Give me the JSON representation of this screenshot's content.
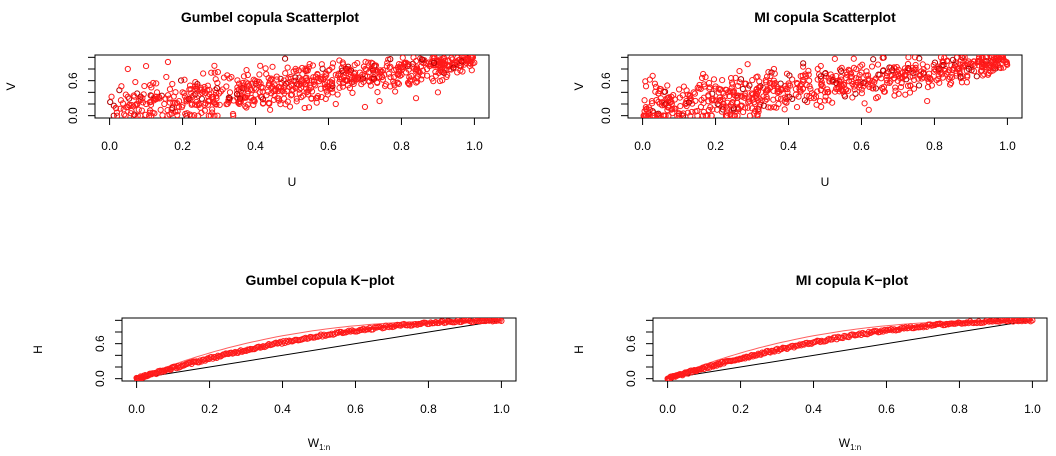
{
  "colors": {
    "points": "#ff1a1a",
    "points_dark": "#b00000",
    "ref_line": "#000000",
    "upper_curve": "#ff6060"
  },
  "chart_data": [
    {
      "type": "scatter",
      "title": "Gumbel copula Scatterplot",
      "xlabel": "U",
      "ylabel": "V",
      "xlim": [
        0,
        1
      ],
      "ylim": [
        0,
        1
      ],
      "xticks": [
        "0.0",
        "0.2",
        "0.4",
        "0.6",
        "0.8",
        "1.0"
      ],
      "yticks": [
        "0.0",
        "0.6"
      ],
      "series": [
        {
          "values_description_free": true,
          "x": [
            0.02,
            0.05,
            0.08,
            0.1,
            0.12,
            0.14,
            0.16,
            0.18,
            0.2,
            0.22,
            0.24,
            0.26,
            0.28,
            0.3,
            0.32,
            0.34,
            0.36,
            0.38,
            0.4,
            0.42,
            0.44,
            0.46,
            0.48,
            0.5,
            0.52,
            0.54,
            0.56,
            0.58,
            0.6,
            0.62,
            0.64,
            0.66,
            0.68,
            0.7,
            0.72,
            0.74,
            0.76,
            0.78,
            0.8,
            0.82,
            0.84,
            0.86,
            0.88,
            0.9,
            0.92,
            0.94,
            0.96,
            0.98,
            0.03,
            0.06,
            0.09,
            0.11,
            0.15,
            0.19,
            0.23,
            0.27,
            0.31,
            0.35,
            0.39,
            0.43,
            0.47,
            0.51,
            0.55,
            0.59,
            0.63,
            0.67,
            0.71,
            0.75,
            0.79,
            0.83,
            0.87,
            0.91,
            0.95,
            0.99,
            0.04,
            0.07,
            0.13,
            0.17,
            0.21,
            0.25,
            0.29,
            0.33,
            0.37,
            0.41,
            0.45,
            0.49,
            0.53,
            0.57,
            0.61,
            0.65,
            0.69,
            0.73,
            0.77,
            0.81,
            0.85,
            0.89,
            0.93,
            0.97,
            0.05,
            0.1,
            0.16,
            0.44,
            0.62,
            0.7,
            0.74,
            0.84,
            0.9
          ],
          "y": [
            0.05,
            0.15,
            0.25,
            0.2,
            0.3,
            0.1,
            0.35,
            0.22,
            0.4,
            0.28,
            0.18,
            0.45,
            0.32,
            0.38,
            0.5,
            0.26,
            0.42,
            0.55,
            0.36,
            0.48,
            0.6,
            0.3,
            0.52,
            0.44,
            0.65,
            0.4,
            0.58,
            0.62,
            0.5,
            0.7,
            0.56,
            0.75,
            0.64,
            0.68,
            0.8,
            0.72,
            0.85,
            0.78,
            0.82,
            0.88,
            0.76,
            0.9,
            0.86,
            0.92,
            0.94,
            0.89,
            0.96,
            0.98,
            0.12,
            0.08,
            0.3,
            0.05,
            0.2,
            0.15,
            0.35,
            0.25,
            0.45,
            0.3,
            0.55,
            0.35,
            0.48,
            0.6,
            0.52,
            0.66,
            0.58,
            0.72,
            0.6,
            0.78,
            0.7,
            0.84,
            0.8,
            0.88,
            0.92,
            0.96,
            0.02,
            0.18,
            0.4,
            0.1,
            0.28,
            0.48,
            0.2,
            0.4,
            0.32,
            0.58,
            0.42,
            0.64,
            0.34,
            0.7,
            0.46,
            0.8,
            0.54,
            0.86,
            0.66,
            0.9,
            0.74,
            0.94,
            0.84,
            0.99,
            0.8,
            0.85,
            0.92,
            0.1,
            0.2,
            0.15,
            0.25,
            0.3,
            0.4
          ]
        }
      ]
    },
    {
      "type": "scatter",
      "title": "MI copula Scatterplot",
      "xlabel": "U",
      "ylabel": "V",
      "xlim": [
        0,
        1
      ],
      "ylim": [
        0,
        1
      ],
      "xticks": [
        "0.0",
        "0.2",
        "0.4",
        "0.6",
        "0.8",
        "1.0"
      ],
      "yticks": [
        "0.0",
        "0.6"
      ],
      "series": [
        {
          "x": [
            0.02,
            0.05,
            0.08,
            0.1,
            0.12,
            0.14,
            0.16,
            0.18,
            0.2,
            0.22,
            0.24,
            0.26,
            0.28,
            0.3,
            0.32,
            0.34,
            0.36,
            0.38,
            0.4,
            0.42,
            0.44,
            0.46,
            0.48,
            0.5,
            0.52,
            0.54,
            0.56,
            0.58,
            0.6,
            0.62,
            0.64,
            0.66,
            0.68,
            0.7,
            0.72,
            0.74,
            0.76,
            0.78,
            0.8,
            0.82,
            0.84,
            0.86,
            0.88,
            0.9,
            0.92,
            0.94,
            0.96,
            0.98,
            0.03,
            0.06,
            0.09,
            0.11,
            0.15,
            0.19,
            0.23,
            0.27,
            0.31,
            0.35,
            0.39,
            0.43,
            0.47,
            0.51,
            0.55,
            0.59,
            0.63,
            0.67,
            0.71,
            0.75,
            0.79,
            0.83,
            0.87,
            0.91,
            0.95,
            0.99,
            0.04,
            0.07,
            0.13,
            0.17,
            0.21,
            0.25,
            0.29,
            0.33,
            0.37,
            0.41,
            0.45,
            0.49,
            0.53,
            0.57,
            0.61,
            0.65,
            0.69,
            0.73,
            0.77,
            0.81,
            0.85,
            0.89,
            0.93,
            0.97,
            0.36,
            0.44,
            0.5,
            0.62,
            0.64,
            0.72,
            0.78
          ],
          "y": [
            0.1,
            0.3,
            0.2,
            0.45,
            0.25,
            0.4,
            0.15,
            0.35,
            0.5,
            0.28,
            0.42,
            0.22,
            0.55,
            0.38,
            0.48,
            0.32,
            0.6,
            0.44,
            0.52,
            0.36,
            0.58,
            0.46,
            0.62,
            0.4,
            0.66,
            0.54,
            0.7,
            0.5,
            0.74,
            0.6,
            0.64,
            0.78,
            0.68,
            0.72,
            0.76,
            0.82,
            0.7,
            0.84,
            0.8,
            0.86,
            0.78,
            0.88,
            0.84,
            0.9,
            0.92,
            0.88,
            0.95,
            0.98,
            0.05,
            0.18,
            0.12,
            0.35,
            0.08,
            0.26,
            0.44,
            0.16,
            0.34,
            0.56,
            0.24,
            0.46,
            0.3,
            0.64,
            0.42,
            0.58,
            0.52,
            0.68,
            0.56,
            0.74,
            0.62,
            0.8,
            0.72,
            0.86,
            0.82,
            0.96,
            0.02,
            0.24,
            0.3,
            0.5,
            0.18,
            0.36,
            0.28,
            0.48,
            0.4,
            0.62,
            0.34,
            0.54,
            0.46,
            0.66,
            0.58,
            0.7,
            0.64,
            0.8,
            0.74,
            0.84,
            0.78,
            0.9,
            0.88,
            0.94,
            0.8,
            0.84,
            0.72,
            0.1,
            0.3,
            0.36,
            0.25
          ]
        }
      ]
    },
    {
      "type": "line",
      "title": "Gumbel copula K−plot",
      "xlabel": "W",
      "xlabel_sub": "1:n",
      "ylabel": "H",
      "xlim": [
        0,
        1
      ],
      "ylim": [
        0,
        1
      ],
      "xticks": [
        "0.0",
        "0.2",
        "0.4",
        "0.6",
        "0.8",
        "1.0"
      ],
      "yticks": [
        "0.0",
        "0.6"
      ]
    },
    {
      "type": "line",
      "title": "MI copula K−plot",
      "xlabel": "W",
      "xlabel_sub": "1:n",
      "ylabel": "H",
      "xlim": [
        0,
        1
      ],
      "ylim": [
        0,
        1
      ],
      "xticks": [
        "0.0",
        "0.2",
        "0.4",
        "0.6",
        "0.8",
        "1.0"
      ],
      "yticks": [
        "0.0",
        "0.6"
      ]
    }
  ]
}
